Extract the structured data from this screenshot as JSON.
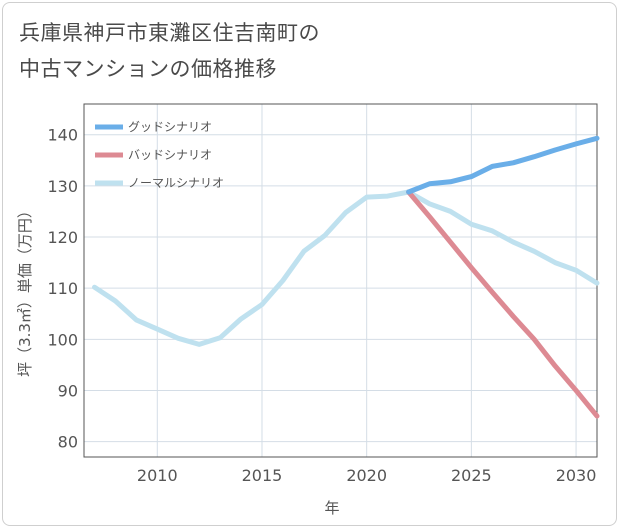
{
  "title_line1": "兵庫県神戸市東灘区住吉南町の",
  "title_line2": "中古マンションの価格推移",
  "chart_data": {
    "type": "line",
    "xlabel": "年",
    "ylabel": "坪（3.3㎡）単価（万円）",
    "xlim": [
      2006.5,
      2031
    ],
    "ylim": [
      77,
      146
    ],
    "xticks": [
      2010,
      2015,
      2020,
      2025,
      2030
    ],
    "yticks": [
      80,
      90,
      100,
      110,
      120,
      130,
      140
    ],
    "legend_position": "top-left",
    "grid": true,
    "series": [
      {
        "name": "グッドシナリオ",
        "color": "#6aaee8",
        "x": [
          2022,
          2023,
          2024,
          2025,
          2026,
          2027,
          2028,
          2029,
          2030,
          2031
        ],
        "y": [
          128.8,
          130.4,
          130.8,
          131.8,
          133.8,
          134.5,
          135.7,
          137.0,
          138.2,
          139.3
        ]
      },
      {
        "name": "バッドシナリオ",
        "color": "#dd8a93",
        "x": [
          2022,
          2023,
          2024,
          2025,
          2026,
          2027,
          2028,
          2029,
          2030,
          2031
        ],
        "y": [
          128.8,
          124.0,
          119.0,
          114.0,
          109.2,
          104.5,
          100.0,
          94.8,
          90.0,
          85.0
        ]
      },
      {
        "name": "ノーマルシナリオ",
        "color": "#bfe1ef",
        "x": [
          2007,
          2008,
          2009,
          2010,
          2011,
          2012,
          2013,
          2014,
          2015,
          2016,
          2017,
          2018,
          2019,
          2020,
          2021,
          2022,
          2023,
          2024,
          2025,
          2026,
          2027,
          2028,
          2029,
          2030,
          2031
        ],
        "y": [
          110.2,
          107.5,
          103.8,
          102.0,
          100.2,
          99.0,
          100.3,
          104.0,
          106.8,
          111.5,
          117.2,
          120.3,
          124.8,
          127.8,
          128.0,
          128.8,
          126.5,
          125.0,
          122.5,
          121.2,
          119.0,
          117.2,
          115.0,
          113.5,
          111.0
        ]
      }
    ]
  }
}
